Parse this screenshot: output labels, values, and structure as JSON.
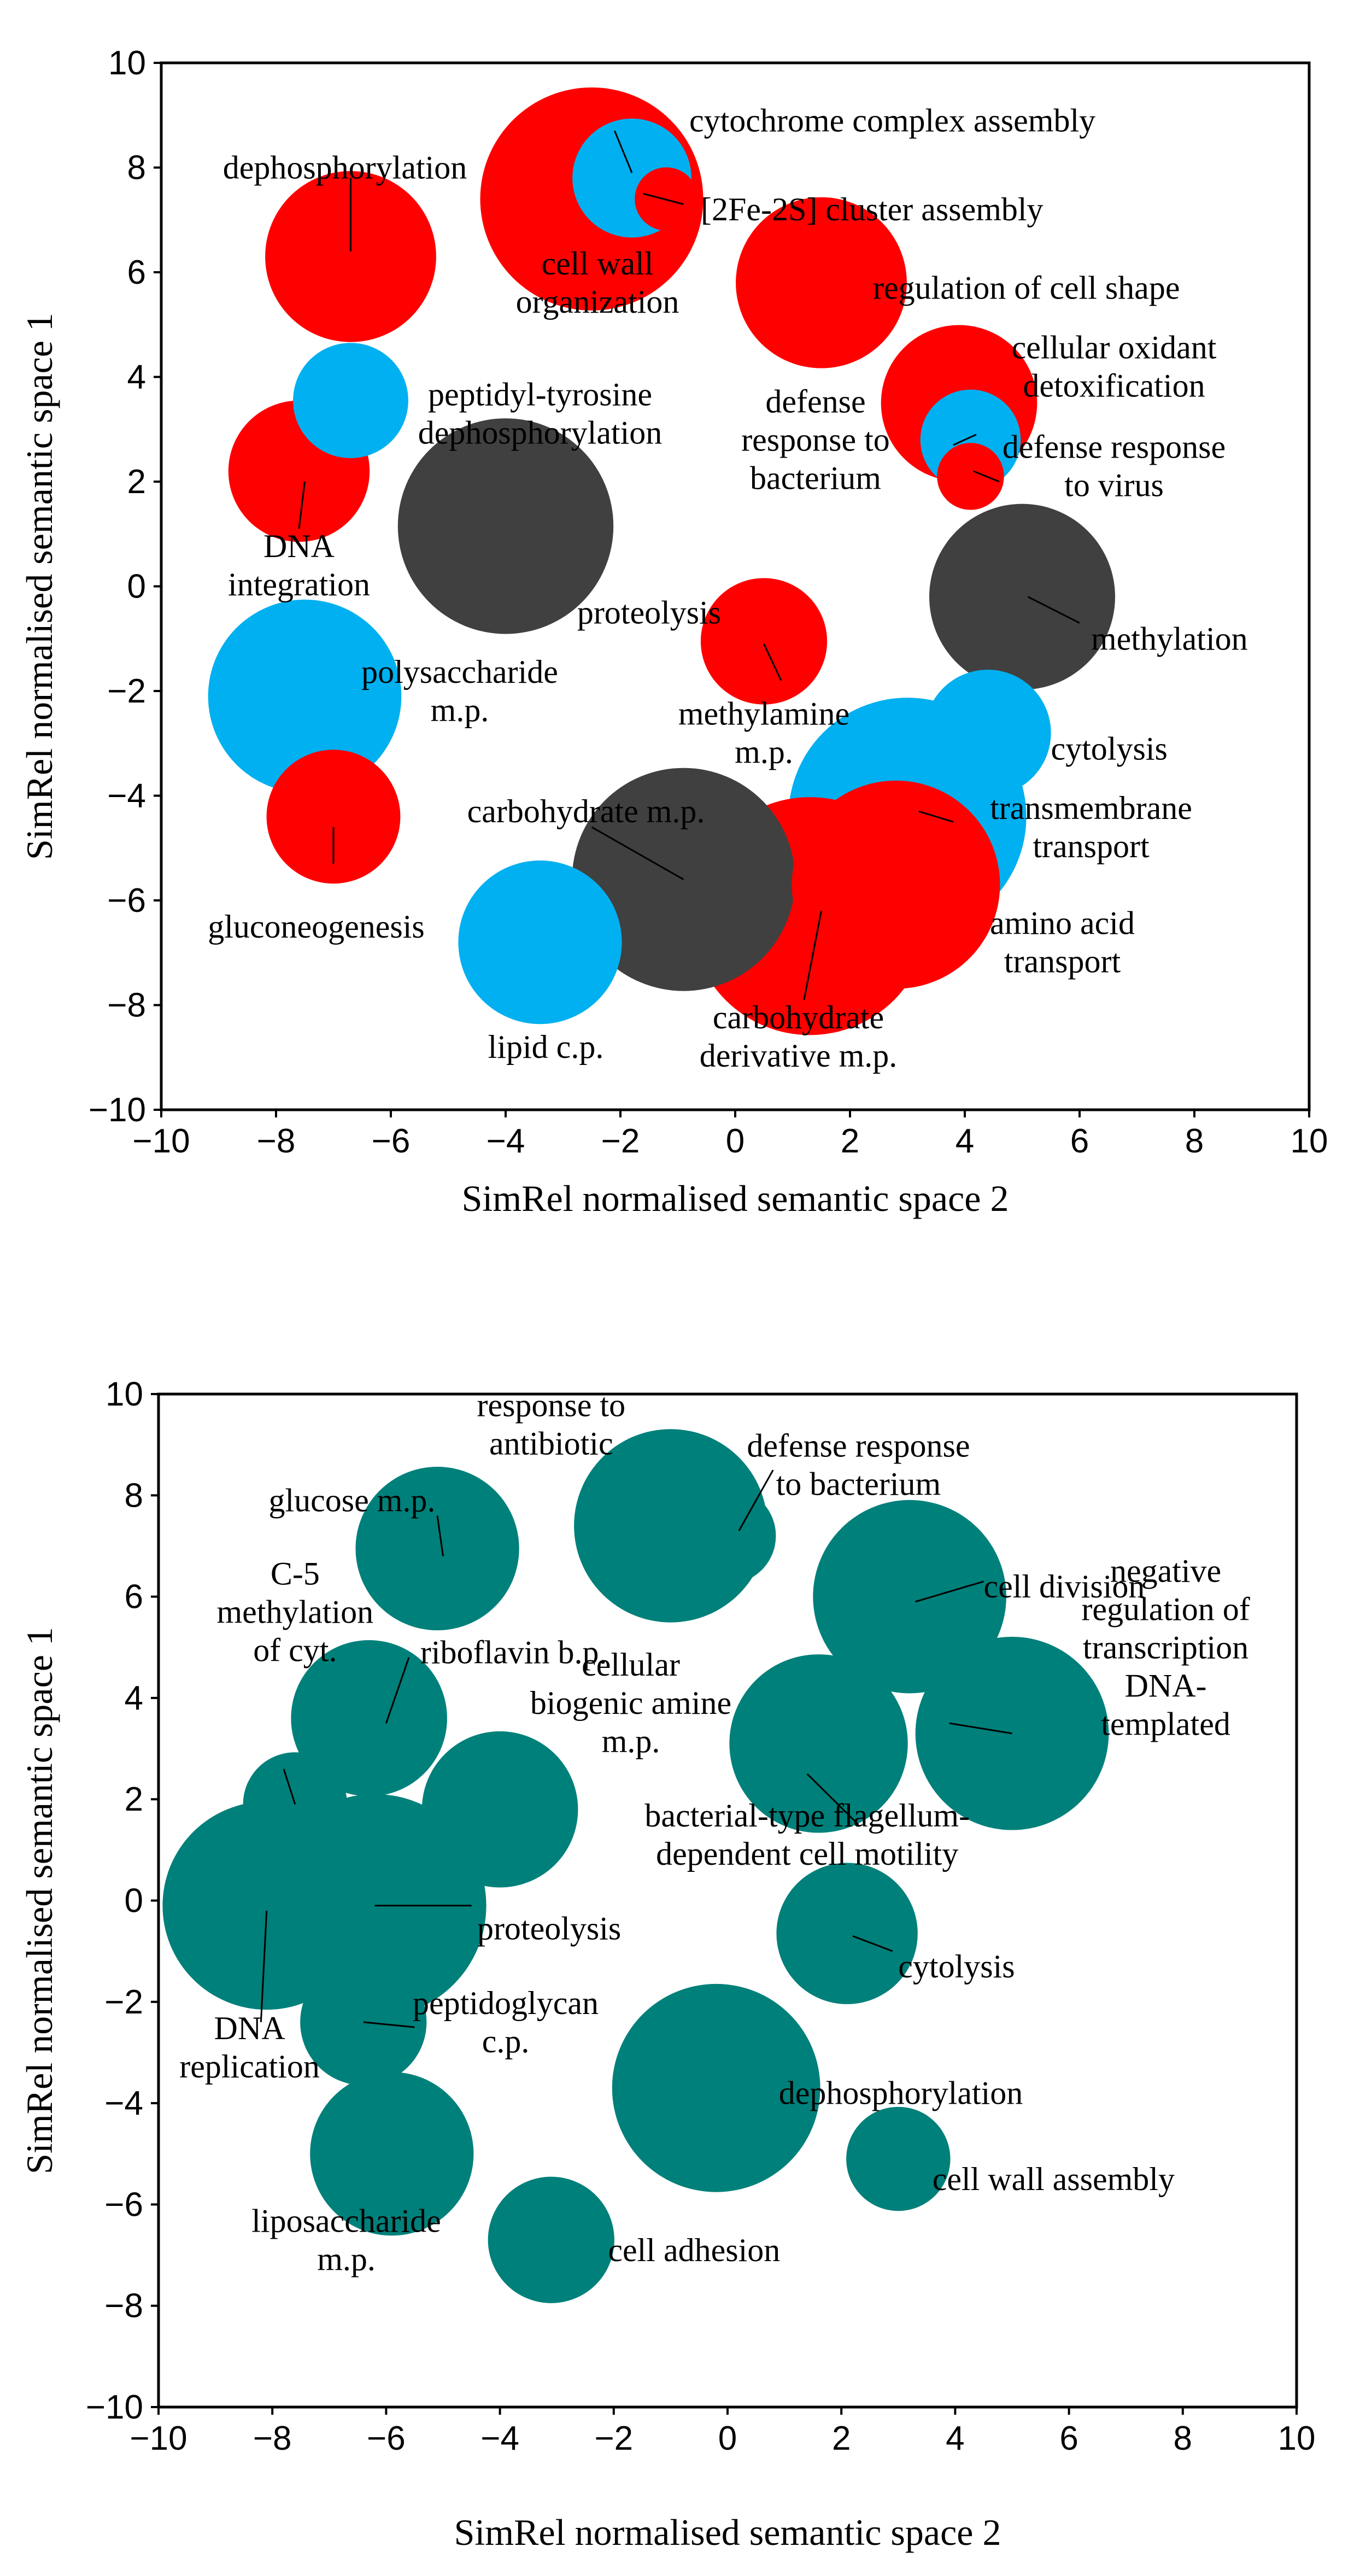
{
  "colors": {
    "red": "#ff0000",
    "blue": "#00b0f0",
    "dark": "#404040",
    "teal": "#00807a"
  },
  "chart_data": [
    {
      "type": "scatter",
      "title": "",
      "xlabel": "SimRel normalised semantic space 2",
      "ylabel": "SimRel normalised semantic space 1",
      "xlim": [
        -10,
        10
      ],
      "ylim": [
        -10,
        10
      ],
      "xticks": [
        "−10",
        "−8",
        "−6",
        "−4",
        "−2",
        "0",
        "2",
        "4",
        "6",
        "8",
        "10"
      ],
      "yticks": [
        "−10",
        "−8",
        "−6",
        "−4",
        "−2",
        "0",
        "2",
        "4",
        "6",
        "8",
        "10"
      ],
      "grid": false,
      "points": [
        {
          "x": -2.5,
          "y": 7.4,
          "size": 3,
          "color": "red",
          "label": [
            "cell wall",
            "organization"
          ],
          "lx": -2.4,
          "ly": 5.8,
          "anchor": "middle"
        },
        {
          "x": -6.7,
          "y": 6.3,
          "size": 2.3,
          "color": "red",
          "label": [
            "dephosphorylation"
          ],
          "lx": -6.8,
          "ly": 8.0,
          "anchor": "middle"
        },
        {
          "x": -1.8,
          "y": 7.8,
          "size": 1.6,
          "color": "blue",
          "label": [
            "cytochrome complex assembly"
          ],
          "lx": -0.8,
          "ly": 8.9,
          "anchor": "start"
        },
        {
          "x": -1.2,
          "y": 7.4,
          "size": 0.85,
          "color": "red",
          "label": [
            "[2Fe-2S] cluster assembly"
          ],
          "lx": -0.6,
          "ly": 7.2,
          "anchor": "start"
        },
        {
          "x": 1.5,
          "y": 5.8,
          "size": 2.3,
          "color": "red",
          "label": [
            "regulation of cell shape"
          ],
          "lx": 2.4,
          "ly": 5.7,
          "anchor": "start"
        },
        {
          "x": -6.7,
          "y": 3.55,
          "size": 1.55,
          "color": "blue",
          "label": [
            "peptidyl-tyrosine",
            "dephosphorylation"
          ],
          "lx": -3.4,
          "ly": 3.3,
          "anchor": "middle"
        },
        {
          "x": -7.6,
          "y": 2.2,
          "size": 1.9,
          "color": "red",
          "label": [
            "DNA",
            "integration"
          ],
          "lx": -7.6,
          "ly": 0.4,
          "anchor": "middle"
        },
        {
          "x": 3.9,
          "y": 3.5,
          "size": 2.1,
          "color": "red",
          "label": [
            "cellular oxidant",
            "detoxification"
          ],
          "lx": 6.6,
          "ly": 4.2,
          "anchor": "middle"
        },
        {
          "x": 4.1,
          "y": 2.8,
          "size": 1.35,
          "color": "blue",
          "label": [
            "defense",
            "response to",
            "bacterium"
          ],
          "lx": 1.4,
          "ly": 2.8,
          "anchor": "middle"
        },
        {
          "x": 4.1,
          "y": 2.1,
          "size": 0.9,
          "color": "red",
          "label": [
            "defense response",
            "to virus"
          ],
          "lx": 6.6,
          "ly": 2.3,
          "anchor": "middle"
        },
        {
          "x": -4.0,
          "y": 1.15,
          "size": 2.9,
          "color": "dark",
          "label": [
            "proteolysis"
          ],
          "lx": -1.5,
          "ly": -0.5,
          "anchor": "middle"
        },
        {
          "x": 5.0,
          "y": -0.2,
          "size": 2.5,
          "color": "dark",
          "label": [
            "methylation"
          ],
          "lx": 6.2,
          "ly": -1.0,
          "anchor": "start"
        },
        {
          "x": 0.5,
          "y": -1.05,
          "size": 1.7,
          "color": "red",
          "label": [
            "methylamine",
            "m.p."
          ],
          "lx": 0.5,
          "ly": -2.8,
          "anchor": "middle"
        },
        {
          "x": -7.5,
          "y": -2.1,
          "size": 2.6,
          "color": "blue",
          "label": [
            "polysaccharide",
            "m.p."
          ],
          "lx": -4.8,
          "ly": -2.0,
          "anchor": "middle"
        },
        {
          "x": 4.4,
          "y": -2.8,
          "size": 1.7,
          "color": "blue",
          "label": [
            "cytolysis"
          ],
          "lx": 5.5,
          "ly": -3.1,
          "anchor": "start"
        },
        {
          "x": -7.0,
          "y": -4.4,
          "size": 1.8,
          "color": "red",
          "label": [
            "gluconeogenesis"
          ],
          "lx": -7.3,
          "ly": -6.5,
          "anchor": "middle"
        },
        {
          "x": 2.8,
          "y": -5.7,
          "size": 2.8,
          "color": "red",
          "label": [
            "amino acid",
            "transport"
          ],
          "lx": 5.7,
          "ly": -6.8,
          "anchor": "middle"
        },
        {
          "x": 3.0,
          "y": -4.4,
          "size": 3.2,
          "color": "blue",
          "label": [
            "transmembrane",
            "transport"
          ],
          "lx": 6.2,
          "ly": -4.6,
          "anchor": "middle"
        },
        {
          "x": -0.9,
          "y": -5.6,
          "size": 3.0,
          "color": "dark",
          "label": [
            "carbohydrate m.p."
          ],
          "lx": -2.6,
          "ly": -4.3,
          "anchor": "middle"
        },
        {
          "x": 1.3,
          "y": -6.3,
          "size": 3.2,
          "color": "red",
          "label": [
            "carbohydrate",
            "derivative m.p."
          ],
          "lx": 1.1,
          "ly": -8.6,
          "anchor": "middle"
        },
        {
          "x": -3.4,
          "y": -6.8,
          "size": 2.2,
          "color": "blue",
          "label": [
            "lipid c.p."
          ],
          "lx": -3.3,
          "ly": -8.8,
          "anchor": "middle"
        }
      ],
      "leaders": [
        [
          -2.1,
          8.7,
          -1.8,
          7.9
        ],
        [
          -1.6,
          7.5,
          -0.9,
          7.3
        ],
        [
          -6.7,
          7.8,
          -6.7,
          6.4
        ],
        [
          3.8,
          2.7,
          4.2,
          2.9
        ],
        [
          4.6,
          2.0,
          4.15,
          2.2
        ],
        [
          6.0,
          -0.7,
          5.1,
          -0.2
        ],
        [
          0.8,
          -1.8,
          0.5,
          -1.1
        ],
        [
          -7.6,
          1.1,
          -7.5,
          2.0
        ],
        [
          3.2,
          -4.3,
          3.8,
          -4.5
        ],
        [
          -7.0,
          -5.3,
          -7.0,
          -4.6
        ],
        [
          -2.5,
          -4.6,
          -0.9,
          -5.6
        ],
        [
          1.5,
          -6.2,
          1.2,
          -7.9
        ]
      ]
    },
    {
      "type": "scatter",
      "title": "",
      "xlabel": "SimRel normalised semantic space 2",
      "ylabel": "SimRel normalised semantic space 1",
      "xlim": [
        -10,
        10
      ],
      "ylim": [
        -10,
        10
      ],
      "xticks": [
        "−10",
        "−8",
        "−6",
        "−4",
        "−2",
        "0",
        "2",
        "4",
        "6",
        "8",
        "10"
      ],
      "yticks": [
        "−10",
        "−8",
        "−6",
        "−4",
        "−2",
        "0",
        "2",
        "4",
        "6",
        "8",
        "10"
      ],
      "grid": false,
      "points": [
        {
          "x": -5.1,
          "y": 6.95,
          "size": 2.2,
          "color": "teal",
          "label": [
            "glucose m.p."
          ],
          "lx": -6.6,
          "ly": 7.9,
          "anchor": "middle"
        },
        {
          "x": -1.0,
          "y": 7.4,
          "size": 2.6,
          "color": "teal",
          "label": [
            "response to",
            "antibiotic"
          ],
          "lx": -3.1,
          "ly": 9.4,
          "anchor": "middle"
        },
        {
          "x": 0.0,
          "y": 7.2,
          "size": 1.3,
          "color": "teal",
          "label": [
            "defense response",
            "to bacterium"
          ],
          "lx": 2.3,
          "ly": 8.6,
          "anchor": "middle"
        },
        {
          "x": 3.2,
          "y": 6.0,
          "size": 2.6,
          "color": "teal",
          "label": [
            "cell division"
          ],
          "lx": 4.5,
          "ly": 6.2,
          "anchor": "start"
        },
        {
          "x": -6.3,
          "y": 3.6,
          "size": 2.1,
          "color": "teal",
          "label": [
            "C-5",
            "methylation",
            "of cyt."
          ],
          "lx": -7.6,
          "ly": 5.7,
          "anchor": "middle"
        },
        {
          "x": -6.3,
          "y": 3.6,
          "size": 0,
          "color": "teal",
          "label": [
            "riboflavin b.p."
          ],
          "lx": -5.4,
          "ly": 4.9,
          "anchor": "start"
        },
        {
          "x": -7.6,
          "y": 1.9,
          "size": 1.4,
          "color": "teal",
          "label": [],
          "lx": 0,
          "ly": 0,
          "anchor": "middle"
        },
        {
          "x": -4.0,
          "y": 1.8,
          "size": 2.1,
          "color": "teal",
          "label": [
            "cellular",
            "biogenic amine",
            "m.p."
          ],
          "lx": -1.7,
          "ly": 3.9,
          "anchor": "middle"
        },
        {
          "x": 1.6,
          "y": 3.1,
          "size": 2.4,
          "color": "teal",
          "label": [
            "bacterial-type flagellum-",
            "dependent cell motility"
          ],
          "lx": 1.4,
          "ly": 1.3,
          "anchor": "middle"
        },
        {
          "x": 5.0,
          "y": 3.3,
          "size": 2.6,
          "color": "teal",
          "label": [
            "negative",
            "regulation of",
            "transcription",
            "DNA-",
            "templated"
          ],
          "lx": 7.7,
          "ly": 5.0,
          "anchor": "middle"
        },
        {
          "x": -8.1,
          "y": -0.1,
          "size": 2.8,
          "color": "teal",
          "label": [
            "DNA",
            "replication"
          ],
          "lx": -8.4,
          "ly": -2.9,
          "anchor": "middle"
        },
        {
          "x": -6.2,
          "y": -0.1,
          "size": 3.0,
          "color": "teal",
          "label": [
            "proteolysis"
          ],
          "lx": -4.4,
          "ly": -0.55,
          "anchor": "start"
        },
        {
          "x": 2.1,
          "y": -0.65,
          "size": 1.9,
          "color": "teal",
          "label": [
            "cytolysis"
          ],
          "lx": 3.0,
          "ly": -1.3,
          "anchor": "start"
        },
        {
          "x": -6.4,
          "y": -2.4,
          "size": 1.7,
          "color": "teal",
          "label": [
            "peptidoglycan",
            "c.p."
          ],
          "lx": -3.9,
          "ly": -2.4,
          "anchor": "middle"
        },
        {
          "x": -0.2,
          "y": -3.7,
          "size": 2.8,
          "color": "teal",
          "label": [
            "dephosphorylation"
          ],
          "lx": 0.9,
          "ly": -3.8,
          "anchor": "start"
        },
        {
          "x": -5.9,
          "y": -5.0,
          "size": 2.2,
          "color": "teal",
          "label": [
            "liposaccharide",
            "m.p."
          ],
          "lx": -6.7,
          "ly": -6.7,
          "anchor": "middle"
        },
        {
          "x": 3.0,
          "y": -5.1,
          "size": 1.4,
          "color": "teal",
          "label": [
            "cell wall assembly"
          ],
          "lx": 3.6,
          "ly": -5.5,
          "anchor": "start"
        },
        {
          "x": -3.1,
          "y": -6.7,
          "size": 1.7,
          "color": "teal",
          "label": [
            "cell adhesion"
          ],
          "lx": -2.1,
          "ly": -6.9,
          "anchor": "start"
        }
      ],
      "leaders": [
        [
          -5.1,
          7.6,
          -5.0,
          6.8
        ],
        [
          0.8,
          8.5,
          0.2,
          7.3
        ],
        [
          4.5,
          6.3,
          3.3,
          5.9
        ],
        [
          -5.6,
          4.8,
          -6.0,
          3.5
        ],
        [
          -7.8,
          2.6,
          -7.6,
          1.9
        ],
        [
          -4.5,
          -0.1,
          -6.2,
          -0.1
        ],
        [
          1.4,
          2.5,
          2.3,
          1.5
        ],
        [
          3.9,
          3.5,
          5.0,
          3.3
        ],
        [
          -8.1,
          -0.2,
          -8.2,
          -2.4
        ],
        [
          2.9,
          -1.0,
          2.2,
          -0.7
        ],
        [
          -5.5,
          -2.5,
          -6.4,
          -2.4
        ]
      ]
    }
  ]
}
